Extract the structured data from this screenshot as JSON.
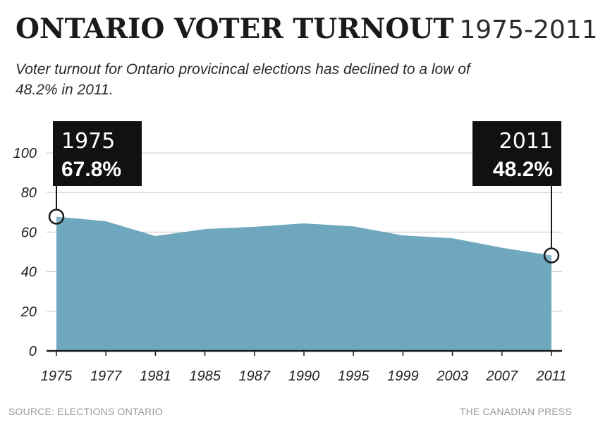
{
  "header": {
    "title_main": "ONTARIO VOTER TURNOUT",
    "title_range": "1975-2011",
    "subtitle": "Voter turnout for Ontario provicincal elections has declined to a low of 48.2% in 2011."
  },
  "footer": {
    "source": "SOURCE: ELECTIONS ONTARIO",
    "credit": "THE CANADIAN PRESS"
  },
  "colors": {
    "area_fill": "#6ea7be",
    "gridline": "#c8c8c8",
    "axis": "#1a1a1a",
    "callout_bg": "#111111",
    "callout_text": "#ffffff"
  },
  "chart_data": {
    "type": "area",
    "categories": [
      "1975",
      "1977",
      "1981",
      "1985",
      "1987",
      "1990",
      "1995",
      "1999",
      "2003",
      "2007",
      "2011"
    ],
    "values": [
      67.8,
      65.5,
      58.0,
      61.5,
      62.7,
      64.4,
      62.9,
      58.3,
      56.9,
      52.1,
      48.2
    ],
    "ylim": [
      0,
      100
    ],
    "yticks": [
      "0",
      "20",
      "40",
      "60",
      "80",
      "100"
    ],
    "grid": true,
    "xlabel": "",
    "ylabel": "",
    "annotations": [
      {
        "category": "1975",
        "year_label": "1975",
        "value_label": "67.8%",
        "value": 67.8,
        "side": "left"
      },
      {
        "category": "2011",
        "year_label": "2011",
        "value_label": "48.2%",
        "value": 48.2,
        "side": "right"
      }
    ]
  }
}
